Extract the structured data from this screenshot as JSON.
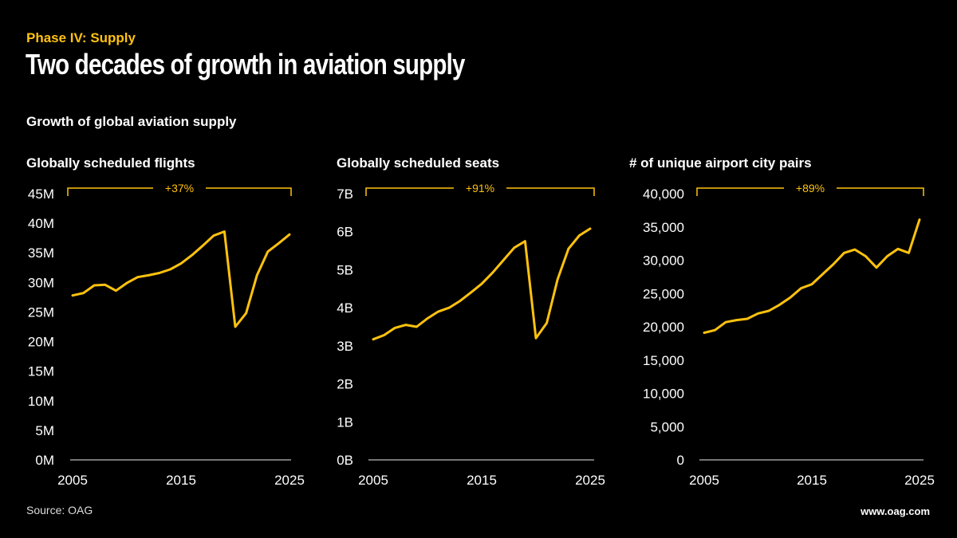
{
  "header": {
    "kicker": "Phase IV: Supply",
    "title": "Two decades of growth in aviation supply",
    "subtitle": "Growth of global aviation supply"
  },
  "footer": {
    "source": "Source: OAG",
    "url": "www.oag.com"
  },
  "colors": {
    "line": "#FFC20E",
    "background": "#000000",
    "axis": "#BBBBBB",
    "text": "#FFFFFF"
  },
  "chart_data": [
    {
      "type": "line",
      "title": "Globally scheduled flights",
      "annotation": "+37%",
      "x": [
        2005,
        2006,
        2007,
        2008,
        2009,
        2010,
        2011,
        2012,
        2013,
        2014,
        2015,
        2016,
        2017,
        2018,
        2019,
        2020,
        2021,
        2022,
        2023,
        2024,
        2025
      ],
      "values": [
        27.8,
        28.2,
        29.5,
        29.6,
        28.6,
        29.9,
        30.9,
        31.2,
        31.6,
        32.2,
        33.2,
        34.6,
        36.2,
        37.9,
        38.6,
        22.5,
        24.8,
        31.2,
        35.2,
        36.6,
        38.1
      ],
      "unit": "M",
      "ylim": [
        0,
        45
      ],
      "yticks": [
        "0M",
        "5M",
        "10M",
        "15M",
        "20M",
        "25M",
        "30M",
        "35M",
        "40M",
        "45M"
      ],
      "xticks": [
        "2005",
        "2015",
        "2025"
      ],
      "grid": false
    },
    {
      "type": "line",
      "title": "Globally scheduled seats",
      "annotation": "+91%",
      "x": [
        2005,
        2006,
        2007,
        2008,
        2009,
        2010,
        2011,
        2012,
        2013,
        2014,
        2015,
        2016,
        2017,
        2018,
        2019,
        2020,
        2021,
        2022,
        2023,
        2024,
        2025
      ],
      "values": [
        3.17,
        3.28,
        3.47,
        3.55,
        3.5,
        3.72,
        3.9,
        4.0,
        4.18,
        4.4,
        4.63,
        4.92,
        5.25,
        5.58,
        5.75,
        3.2,
        3.6,
        4.75,
        5.55,
        5.9,
        6.08
      ],
      "unit": "B",
      "ylim": [
        0,
        7
      ],
      "yticks": [
        "0B",
        "1B",
        "2B",
        "3B",
        "4B",
        "5B",
        "6B",
        "7B"
      ],
      "xticks": [
        "2005",
        "2015",
        "2025"
      ],
      "grid": false
    },
    {
      "type": "line",
      "title": "# of unique airport city pairs",
      "annotation": "+89%",
      "x": [
        2005,
        2006,
        2007,
        2008,
        2009,
        2010,
        2011,
        2012,
        2013,
        2014,
        2015,
        2016,
        2017,
        2018,
        2019,
        2020,
        2021,
        2022,
        2023,
        2024,
        2025
      ],
      "values": [
        19100,
        19500,
        20700,
        21000,
        21200,
        22000,
        22400,
        23300,
        24400,
        25800,
        26400,
        27900,
        29400,
        31100,
        31600,
        30600,
        28900,
        30600,
        31700,
        31100,
        36100
      ],
      "ylim": [
        0,
        40000
      ],
      "yticks": [
        "0",
        "5,000",
        "10,000",
        "15,000",
        "20,000",
        "25,000",
        "30,000",
        "35,000",
        "40,000"
      ],
      "xticks": [
        "2005",
        "2015",
        "2025"
      ],
      "grid": false
    }
  ]
}
